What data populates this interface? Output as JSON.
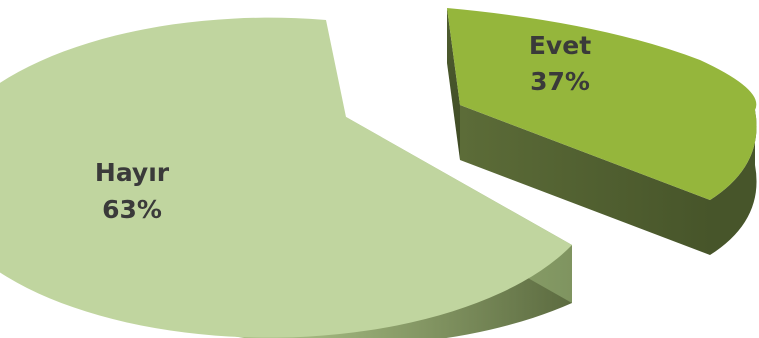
{
  "chart_data": {
    "type": "pie",
    "style": "3d-exploded",
    "title": "",
    "slices": [
      {
        "label": "Hayır",
        "percent_label": "63%",
        "value": 63,
        "color": "#c0d59f"
      },
      {
        "label": "Evet",
        "percent_label": "37%",
        "value": 37,
        "color": "#95b63c"
      }
    ],
    "legend": "none"
  }
}
